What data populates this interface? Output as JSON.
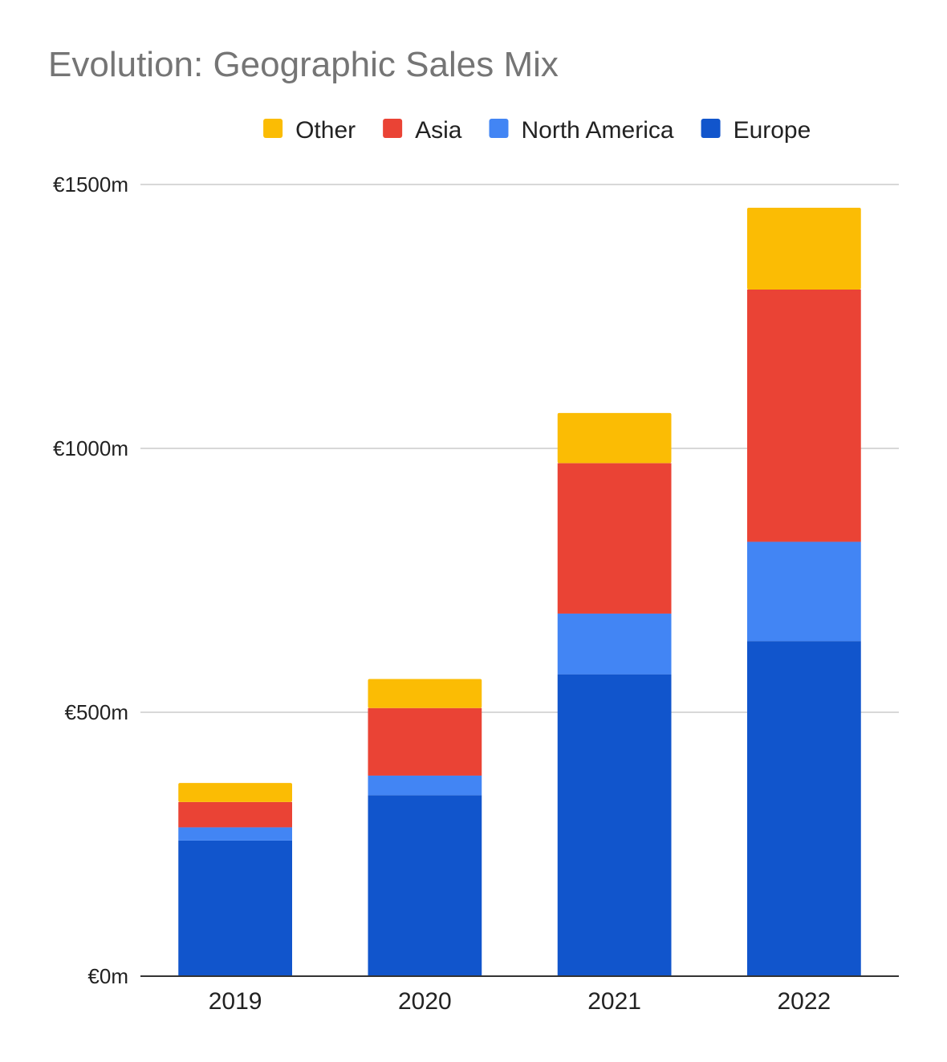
{
  "chart_data": {
    "type": "bar",
    "stacked": true,
    "title": "Evolution: Geographic Sales Mix",
    "xlabel": "",
    "ylabel": "",
    "categories": [
      "2019",
      "2020",
      "2021",
      "2022"
    ],
    "ylim": [
      0,
      1500
    ],
    "y_ticks": [
      0,
      500,
      1000,
      1500
    ],
    "y_tick_labels": [
      "€0m",
      "€500m",
      "€1000m",
      "€1500m"
    ],
    "grid": true,
    "legend_position": "top",
    "legend_order": [
      "Other",
      "Asia",
      "North America",
      "Europe"
    ],
    "series": [
      {
        "name": "Europe",
        "color": "#1155cc",
        "values": [
          257,
          343,
          572,
          635
        ]
      },
      {
        "name": "North America",
        "color": "#4285f4",
        "values": [
          25,
          37,
          115,
          188
        ]
      },
      {
        "name": "Asia",
        "color": "#ea4335",
        "values": [
          48,
          128,
          285,
          478
        ]
      },
      {
        "name": "Other",
        "color": "#fbbc04",
        "values": [
          36,
          55,
          95,
          155
        ]
      }
    ]
  }
}
